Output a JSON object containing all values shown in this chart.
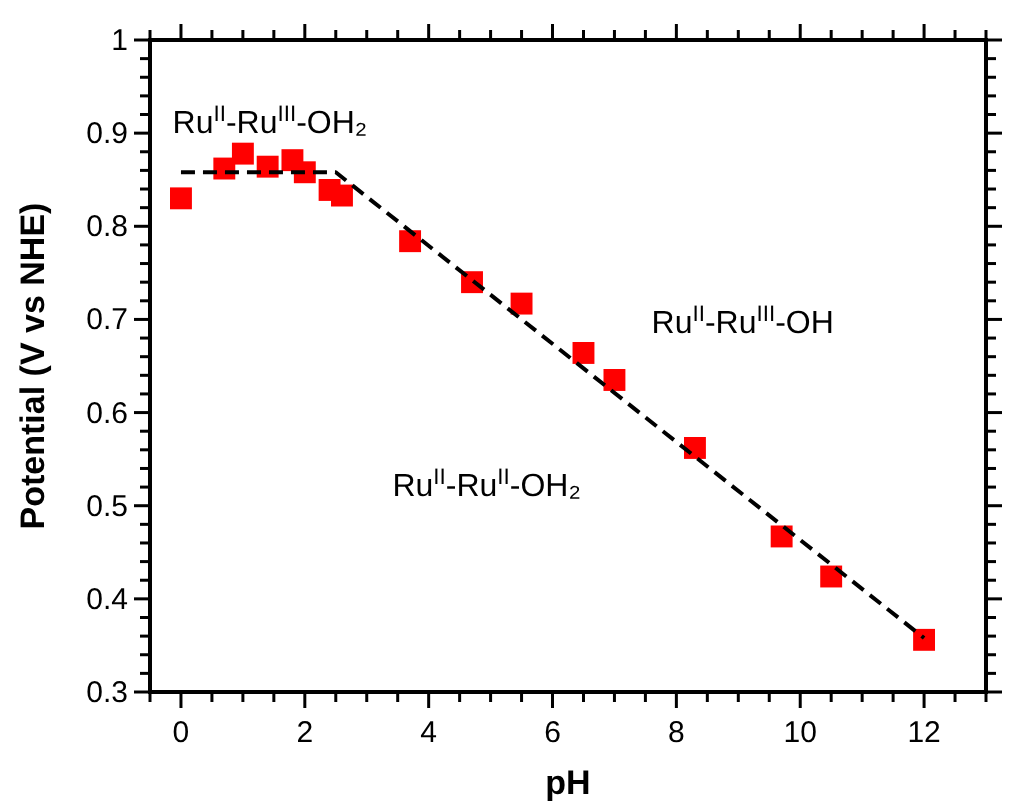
{
  "chart_data": {
    "type": "scatter",
    "xlabel": "pH",
    "ylabel": "Potential (V vs NHE)",
    "xlim": [
      -0.5,
      13
    ],
    "ylim": [
      0.3,
      1
    ],
    "xticks": [
      0,
      2,
      4,
      6,
      8,
      10,
      12,
      {
        "value": -0.5,
        "label": null
      },
      {
        "value": 0.5,
        "label": null
      },
      {
        "value": 1,
        "label": null
      },
      {
        "value": 1.5,
        "label": null
      },
      {
        "value": 2.5,
        "label": null
      },
      {
        "value": 3,
        "label": null
      },
      {
        "value": 3.5,
        "label": null
      },
      {
        "value": 4.5,
        "label": null
      },
      {
        "value": 5,
        "label": null
      },
      {
        "value": 5.5,
        "label": null
      },
      {
        "value": 6.5,
        "label": null
      },
      {
        "value": 7,
        "label": null
      },
      {
        "value": 7.5,
        "label": null
      },
      {
        "value": 8.5,
        "label": null
      },
      {
        "value": 9,
        "label": null
      },
      {
        "value": 9.5,
        "label": null
      },
      {
        "value": 10.5,
        "label": null
      },
      {
        "value": 11,
        "label": null
      },
      {
        "value": 11.5,
        "label": null
      },
      {
        "value": 12.5,
        "label": null
      },
      {
        "value": 13,
        "label": null
      }
    ],
    "yticks": [
      0.3,
      0.4,
      0.5,
      0.6,
      0.7,
      0.8,
      0.9,
      1,
      {
        "value": 0.32,
        "label": null
      },
      {
        "value": 0.34,
        "label": null
      },
      {
        "value": 0.36,
        "label": null
      },
      {
        "value": 0.38,
        "label": null
      },
      {
        "value": 0.42,
        "label": null
      },
      {
        "value": 0.44,
        "label": null
      },
      {
        "value": 0.46,
        "label": null
      },
      {
        "value": 0.48,
        "label": null
      },
      {
        "value": 0.52,
        "label": null
      },
      {
        "value": 0.54,
        "label": null
      },
      {
        "value": 0.56,
        "label": null
      },
      {
        "value": 0.58,
        "label": null
      },
      {
        "value": 0.62,
        "label": null
      },
      {
        "value": 0.64,
        "label": null
      },
      {
        "value": 0.66,
        "label": null
      },
      {
        "value": 0.68,
        "label": null
      },
      {
        "value": 0.72,
        "label": null
      },
      {
        "value": 0.74,
        "label": null
      },
      {
        "value": 0.76,
        "label": null
      },
      {
        "value": 0.78,
        "label": null
      },
      {
        "value": 0.82,
        "label": null
      },
      {
        "value": 0.84,
        "label": null
      },
      {
        "value": 0.86,
        "label": null
      },
      {
        "value": 0.88,
        "label": null
      },
      {
        "value": 0.92,
        "label": null
      },
      {
        "value": 0.94,
        "label": null
      },
      {
        "value": 0.96,
        "label": null
      },
      {
        "value": 0.98,
        "label": null
      }
    ],
    "grid": false,
    "series": [
      {
        "color": "#ff0000",
        "marker": "square",
        "x": [
          0,
          0.7,
          1,
          1.4,
          1.8,
          2,
          2.4,
          2.6,
          3.7,
          4.7,
          5.5,
          6.5,
          7,
          8.3,
          9.7,
          10.5,
          12
        ],
        "values": [
          0.83,
          0.862,
          0.878,
          0.864,
          0.871,
          0.858,
          0.839,
          0.833,
          0.784,
          0.74,
          0.717,
          0.664,
          0.635,
          0.562,
          0.467,
          0.424,
          0.356
        ]
      },
      {
        "type": "line",
        "color": "#000000",
        "line_style": "dashed",
        "marker": "none",
        "x": [
          0,
          2.5,
          12
        ],
        "values": [
          0.858,
          0.858,
          0.358
        ]
      }
    ],
    "annotations": [
      "Ru$^{II}$-Ru$^{III}$-OH₂",
      "Ru$^{II}$-Ru$^{III}$-OH",
      "Ru$^{II}$-Ru$^{II}$-OH₂"
    ]
  }
}
